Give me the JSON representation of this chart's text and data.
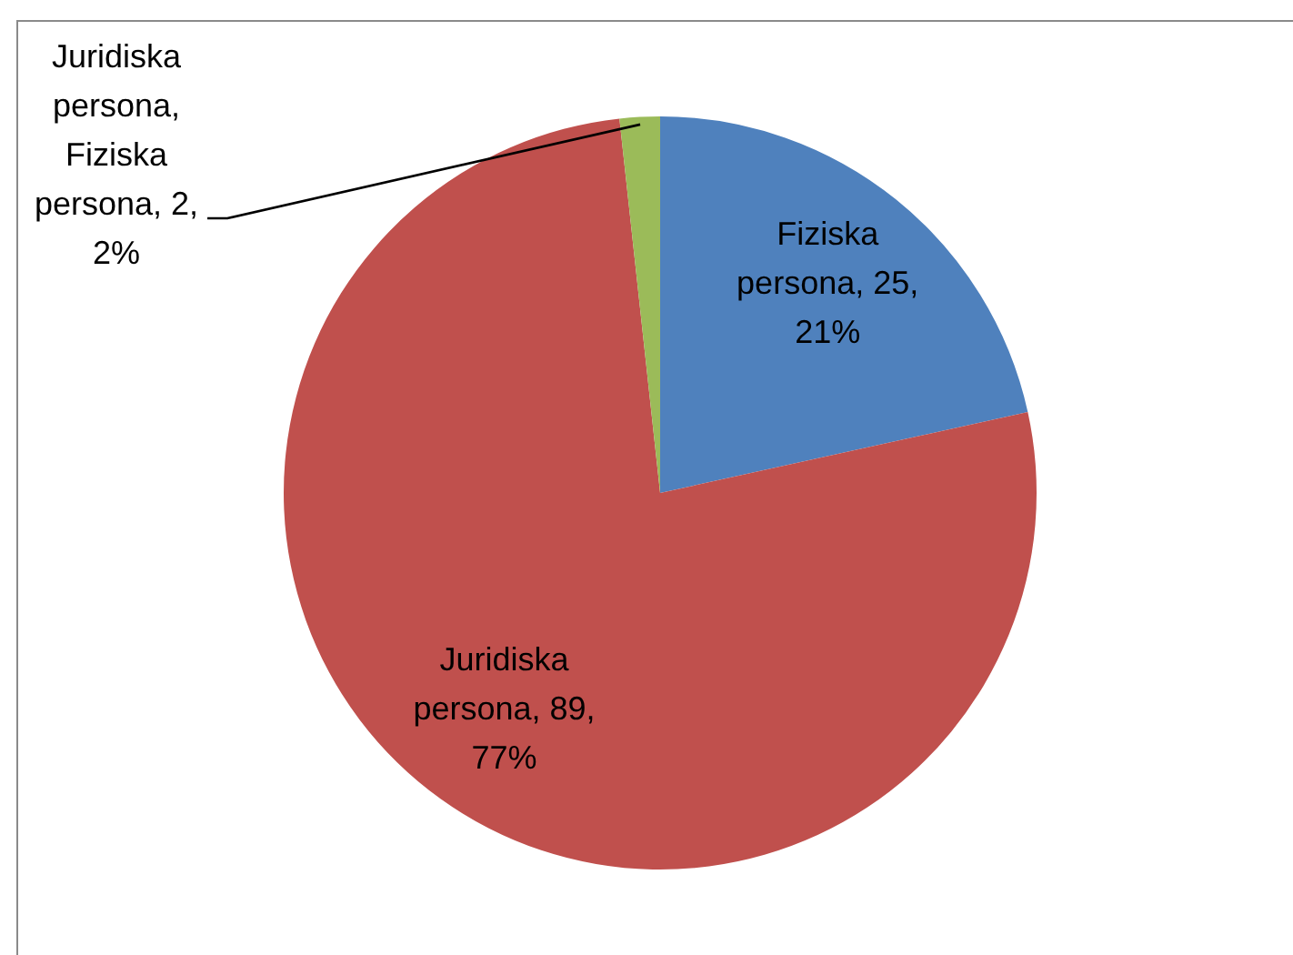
{
  "chart_data": {
    "type": "pie",
    "categories": [
      "Fiziska persona",
      "Juridiska persona",
      "Juridiska persona, Fiziska persona"
    ],
    "values": [
      25,
      89,
      2
    ],
    "colors": [
      "#4f81bd",
      "#c0504d",
      "#9bbb59"
    ],
    "value_labels": [
      "25, 21%",
      "89, 77%",
      "2, 2%"
    ],
    "legend": false
  }
}
